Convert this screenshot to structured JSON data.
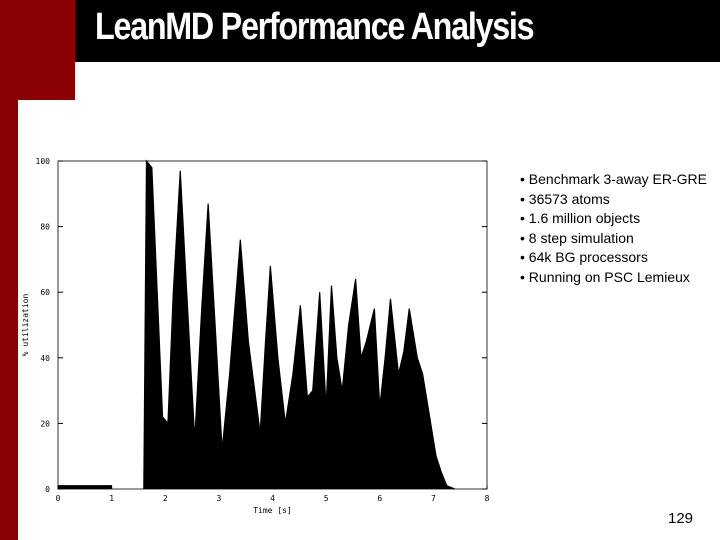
{
  "slide": {
    "title": "LeanMD Performance Analysis",
    "bullets": [
      "• Benchmark 3-away ER-GRE",
      "• 36573 atoms",
      "• 1.6 million objects",
      "• 8 step simulation",
      "• 64k BG processors",
      "• Running on PSC Lemieux"
    ],
    "page_number": "129"
  },
  "chart_data": {
    "type": "area",
    "x_label": "Time [s]",
    "y_label": "% utilization",
    "x": [
      0,
      0.5,
      1.0,
      1.3,
      1.6,
      1.65,
      1.75,
      1.85,
      1.95,
      2.05,
      2.15,
      2.28,
      2.4,
      2.55,
      2.68,
      2.8,
      2.93,
      3.06,
      3.2,
      3.4,
      3.55,
      3.77,
      3.87,
      3.96,
      4.1,
      4.24,
      4.38,
      4.52,
      4.65,
      4.75,
      4.88,
      5.0,
      5.1,
      5.2,
      5.3,
      5.42,
      5.55,
      5.65,
      5.75,
      5.9,
      6.0,
      6.1,
      6.2,
      6.35,
      6.45,
      6.55,
      6.7,
      6.8,
      6.95,
      7.05,
      7.15,
      7.25,
      7.4
    ],
    "series": [
      {
        "name": "% utilization",
        "color": "#000000",
        "values": [
          1,
          1,
          1,
          null,
          0,
          100,
          98,
          60,
          22,
          20,
          60,
          97,
          60,
          15,
          55,
          87,
          50,
          12,
          35,
          76,
          45,
          17,
          45,
          68,
          40,
          20,
          35,
          56,
          28,
          30,
          60,
          25,
          62,
          40,
          30,
          50,
          64,
          40,
          45,
          55,
          25,
          40,
          58,
          35,
          42,
          55,
          40,
          35,
          20,
          10,
          5,
          1,
          0
        ]
      }
    ],
    "xlim": [
      0,
      8
    ],
    "ylim": [
      0,
      100
    ],
    "xticks": [
      0,
      1,
      2,
      3,
      4,
      5,
      6,
      7,
      8
    ],
    "yticks": [
      0,
      20,
      40,
      60,
      80,
      100
    ]
  }
}
